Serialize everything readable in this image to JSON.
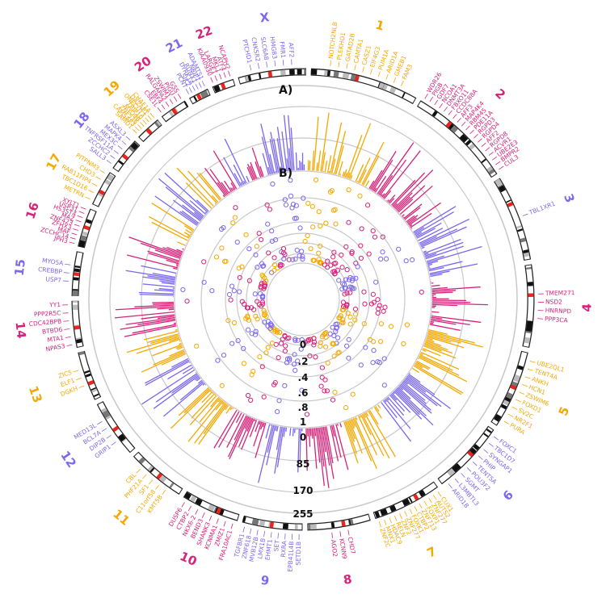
{
  "chart_data": {
    "type": "circos",
    "panel_labels": [
      "A)",
      "B)"
    ],
    "outer_track_ticks": [
      "0",
      "85",
      "170",
      "255"
    ],
    "inner_track_ticks": [
      "0",
      ".2",
      ".4",
      ".6",
      ".8",
      "1"
    ],
    "colors": {
      "orange": "#F5A800",
      "magenta": "#D6237A",
      "purple": "#7B68EE",
      "grid": "#C8C8C8"
    },
    "chromosomes": [
      {
        "name": "1",
        "color": "orange",
        "genes": [
          "NOTCH2NLB",
          "PLEKHO1",
          "GATAD2B",
          "CAMTA1",
          "CASZ1",
          "EIF4G3",
          "PUM1A",
          "ARID1A",
          "GMEB1",
          "FAM3"
        ]
      },
      {
        "name": "2",
        "color": "magenta",
        "genes": [
          "WDR26",
          "PIGB",
          "GDF7",
          "NCOA1",
          "DNMT3A",
          "FBXO11",
          "CCDC88A",
          "AFF3",
          "MAP4K4",
          "RBM45",
          "PDE11A",
          "RGPD3",
          "RGPD4",
          "AFF2",
          "RGPD8",
          "ACVR1",
          "UBE2E3",
          "BMPR2",
          "CUL3"
        ]
      },
      {
        "name": "3",
        "color": "purple",
        "genes": [
          "TBL1XR1"
        ]
      },
      {
        "name": "4",
        "color": "magenta",
        "genes": [
          "TMEM271",
          "NSD2",
          "HNRNPD",
          "PPP3CA"
        ]
      },
      {
        "name": "5",
        "color": "orange",
        "genes": [
          "UBE2QL1",
          "TENT4A",
          "ANKH",
          "HCN1",
          "ZSWIM6",
          "FOXD1",
          "SV2C",
          "NR2F1",
          "PURA"
        ]
      },
      {
        "name": "6",
        "color": "purple",
        "genes": [
          "FOXC1",
          "TBC1D7",
          "SYNGAP1",
          "PHIP",
          "TENT5A",
          "POU3F2",
          "SGMT",
          "L3MBTL3",
          "ARID1B"
        ]
      },
      {
        "name": "7",
        "color": "orange",
        "genes": [
          "CUX1",
          "AUTS2",
          "ZNF277",
          "FOXP1",
          "ZNF713",
          "CTBP2",
          "FOXK1",
          "ZNF277",
          "ZNF2",
          "RELN",
          "HDAC9",
          "MNX1",
          "ZNF2C"
        ]
      },
      {
        "name": "8",
        "color": "magenta",
        "genes": [
          "CHD7",
          "KCNN9",
          "AGO2"
        ]
      },
      {
        "name": "9",
        "color": "purple",
        "genes": [
          "SETD1B",
          "EPB41L4B",
          "RXRA",
          "SET",
          "EHMT1",
          "LMX1B",
          "MVB12B",
          "ZNF618",
          "TGFBR1"
        ]
      },
      {
        "name": "10",
        "color": "magenta",
        "genes": [
          "FRA10AC1",
          "ZMIZ1",
          "KCNMA1",
          "SHANK3",
          "BEND3",
          "NKX6-2",
          "CTBP2",
          "DUSP6"
        ]
      },
      {
        "name": "11",
        "color": "orange",
        "genes": [
          "KMT5B",
          "C11orf58",
          "SF1",
          "PHF21A",
          "CBL"
        ]
      },
      {
        "name": "12",
        "color": "purple",
        "genes": [
          "GRIP1",
          "DIP2B",
          "BCL7A",
          "MED13L"
        ]
      },
      {
        "name": "13",
        "color": "orange",
        "genes": [
          "DGKH",
          "ELF1",
          "ZIC5"
        ]
      },
      {
        "name": "14",
        "color": "magenta",
        "genes": [
          "NPAS3",
          "MTA1",
          "BTBD6",
          "CDC42BPB",
          "PPP2R5C",
          "YY1"
        ]
      },
      {
        "name": "15",
        "color": "purple",
        "genes": [
          "USP7",
          "CREBBP",
          "MYO5A"
        ]
      },
      {
        "name": "16",
        "color": "magenta",
        "genes": [
          "JPH3",
          "ZCCHC14",
          "MAF",
          "ZFHX3",
          "ZNF423",
          "MAZ",
          "HS3ST4",
          "USP31",
          "XYLT1"
        ]
      },
      {
        "name": "17",
        "color": "orange",
        "genes": [
          "METRN",
          "TBC1D16",
          "RAB11FIP4",
          "CHD3",
          "PITPNM3"
        ]
      },
      {
        "name": "18",
        "color": "purple",
        "genes": [
          "SALL3",
          "ZCCHC2",
          "TNFRSF11A",
          "MEX3C",
          "MAPK4",
          "ASXL3"
        ]
      },
      {
        "name": "19",
        "color": "orange",
        "genes": [
          "SAMD1",
          "CAMSAP3",
          "ZNF536",
          "MYO9B",
          "TRIP10",
          "ONECUT3",
          "DAZAP1",
          "CHAF1A"
        ]
      },
      {
        "name": "20",
        "color": "magenta",
        "genes": [
          "CSE1L",
          "EBF4",
          "RALGAPA2",
          "ZSWIM1",
          "PIGU",
          "GSS"
        ]
      },
      {
        "name": "21",
        "color": "purple",
        "genes": [
          "PCNT",
          "SIK2",
          "DYRK1A",
          "RUNX1",
          "NRIP1",
          "ADAMTS1"
        ]
      },
      {
        "name": "22",
        "color": "magenta",
        "genes": [
          "KIAA0930",
          "LARGE1",
          "MKL1",
          "ATF4",
          "NCAPH2"
        ]
      },
      {
        "name": "X",
        "color": "purple",
        "genes": [
          "PTCHD1",
          "CNKSR2",
          "SLC6A8",
          "HMGB3",
          "FMR1",
          "AFF2"
        ]
      }
    ]
  }
}
